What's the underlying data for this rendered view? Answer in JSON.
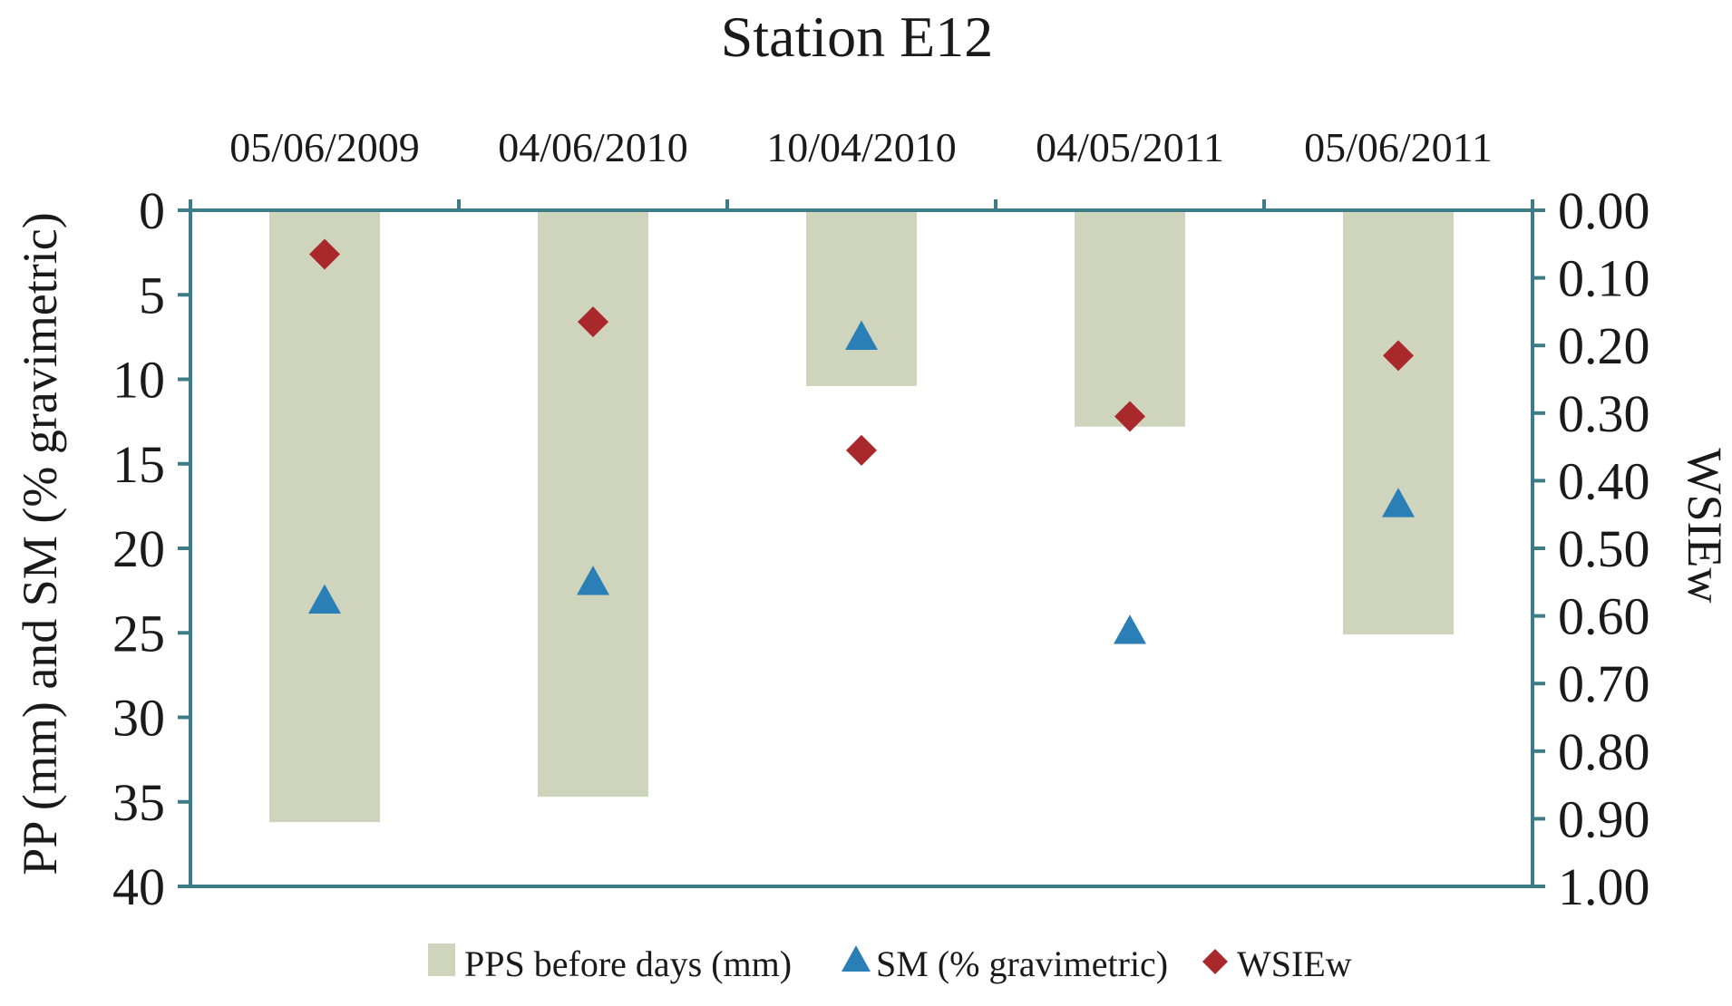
{
  "chart_data": {
    "type": "bar",
    "title": "Station E12",
    "categories": [
      "05/06/2009",
      "04/06/2010",
      "10/04/2010",
      "04/05/2011",
      "05/06/2011"
    ],
    "series": [
      {
        "name": "PPS before days (mm)",
        "kind": "bar",
        "axis": "left",
        "values": [
          36.2,
          34.7,
          10.4,
          12.8,
          25.1
        ]
      },
      {
        "name": "SM (% gravimetric)",
        "kind": "marker",
        "marker": "triangle",
        "axis": "left",
        "values": [
          23.2,
          22.1,
          7.6,
          25.0,
          17.5
        ]
      },
      {
        "name": "WSIEw",
        "kind": "marker",
        "marker": "diamond",
        "axis": "right",
        "values": [
          0.065,
          0.165,
          0.355,
          0.305,
          0.215
        ]
      }
    ],
    "left_axis": {
      "label": "PP (mm) and SM (% gravimetric)",
      "range": [
        0,
        40
      ],
      "inverted": true,
      "ticks": [
        "0",
        "5",
        "10",
        "15",
        "20",
        "25",
        "30",
        "35",
        "40"
      ]
    },
    "right_axis": {
      "label": "WSIEw",
      "range": [
        0,
        1
      ],
      "inverted": true,
      "ticks": [
        "0.00",
        "0.10",
        "0.20",
        "0.30",
        "0.40",
        "0.50",
        "0.60",
        "0.70",
        "0.80",
        "0.90",
        "1.00"
      ]
    },
    "x_axis_position": "top",
    "grid": false,
    "legend_position": "bottom",
    "colors": {
      "bar": "#cfd4bd",
      "triangle": "#2a7fb6",
      "diamond": "#a8282c",
      "axis": "#3d7c86"
    }
  }
}
